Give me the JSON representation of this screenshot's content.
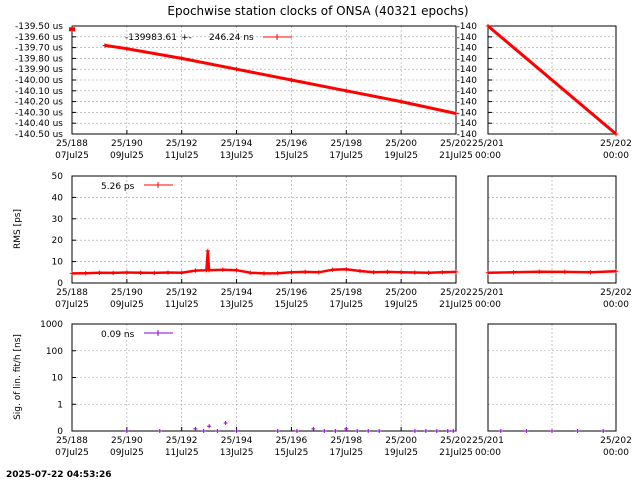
{
  "title": "Epochwise station clocks of ONSA (40321 epochs)",
  "footer": {
    "timestamp": "2025-07-22 04:53:26"
  },
  "colors": {
    "clock": "#ff0000",
    "rms": "#ff0000",
    "sig": "#9400d3",
    "grid": "#a0a0a0"
  },
  "chart_data": [
    {
      "id": "clock",
      "type": "scatter",
      "ylabel": "",
      "legend": {
        "value": "-139983.61",
        "pm": "+-",
        "sigma": "246.24 ns",
        "placement": "top-left"
      },
      "x_ticks_main": [
        {
          "line1": "25/188",
          "line2": "07Jul25"
        },
        {
          "line1": "25/190",
          "line2": "09Jul25"
        },
        {
          "line1": "25/192",
          "line2": "11Jul25"
        },
        {
          "line1": "25/194",
          "line2": "13Jul25"
        },
        {
          "line1": "25/196",
          "line2": "15Jul25"
        },
        {
          "line1": "25/198",
          "line2": "17Jul25"
        },
        {
          "line1": "25/200",
          "line2": "19Jul25"
        },
        {
          "line1": "25/202",
          "line2": "21Jul25"
        }
      ],
      "x_ticks_zoom": [
        {
          "line1": "25/201",
          "line2": "00:00"
        },
        {
          "line1": "25/202",
          "line2": "00:00"
        }
      ],
      "y_ticks_main": [
        "-139.50 us",
        "-139.60 us",
        "-139.70 us",
        "-139.80 us",
        "-139.90 us",
        "-140.00 us",
        "-140.10 us",
        "-140.20 us",
        "-140.30 us",
        "-140.40 us",
        "-140.50 us"
      ],
      "y_ticks_zoom": [
        "-140",
        "-140",
        "-140",
        "-140",
        "-140",
        "-140",
        "-140",
        "-140",
        "-140",
        "-140",
        "-140"
      ],
      "ylim": [
        -140.5,
        -139.5
      ],
      "xlim_main": [
        188,
        202
      ],
      "xlim_zoom": [
        201,
        202
      ],
      "series_main": {
        "x": [
          188.0,
          189.2,
          190.0,
          192.0,
          194.0,
          196.0,
          198.0,
          200.0,
          202.0
        ],
        "y": [
          -139.53,
          -139.68,
          -139.71,
          -139.8,
          -139.9,
          -140.0,
          -140.1,
          -140.2,
          -140.31
        ]
      },
      "series_zoom": {
        "x": [
          201.0,
          202.0
        ],
        "y": [
          -139.5,
          -140.5
        ]
      }
    },
    {
      "id": "rms",
      "type": "line",
      "ylabel": "RMS [ps]",
      "legend": {
        "value": "5.26 ps",
        "placement": "top-left"
      },
      "x_ticks_main": [
        {
          "line1": "25/188",
          "line2": "07Jul25"
        },
        {
          "line1": "25/190",
          "line2": "09Jul25"
        },
        {
          "line1": "25/192",
          "line2": "11Jul25"
        },
        {
          "line1": "25/194",
          "line2": "13Jul25"
        },
        {
          "line1": "25/196",
          "line2": "15Jul25"
        },
        {
          "line1": "25/198",
          "line2": "17Jul25"
        },
        {
          "line1": "25/200",
          "line2": "19Jul25"
        },
        {
          "line1": "25/202",
          "line2": "21Jul25"
        }
      ],
      "x_ticks_zoom": [
        {
          "line1": "25/201",
          "line2": "00:00"
        },
        {
          "line1": "25/202",
          "line2": "00:00"
        }
      ],
      "y_ticks": [
        "0",
        "10",
        "20",
        "30",
        "40",
        "50"
      ],
      "ylim": [
        0,
        50
      ],
      "xlim_main": [
        188,
        202
      ],
      "xlim_zoom": [
        201,
        202
      ],
      "series_main": {
        "x": [
          188.0,
          188.5,
          189.0,
          189.5,
          190.0,
          190.5,
          191.0,
          191.5,
          192.0,
          192.5,
          192.9,
          192.95,
          193.0,
          193.5,
          194.0,
          194.5,
          195.0,
          195.5,
          196.0,
          196.5,
          197.0,
          197.5,
          198.0,
          198.5,
          199.0,
          199.5,
          200.0,
          200.5,
          201.0,
          201.5,
          202.0
        ],
        "y": [
          4.5,
          4.6,
          4.8,
          4.7,
          4.9,
          4.8,
          4.7,
          4.9,
          4.8,
          5.8,
          6.0,
          15.0,
          6.0,
          6.2,
          6.0,
          4.8,
          4.5,
          4.6,
          5.0,
          5.2,
          5.0,
          6.2,
          6.4,
          5.6,
          5.0,
          5.2,
          5.0,
          4.9,
          4.8,
          5.0,
          5.2
        ]
      },
      "series_zoom": {
        "x": [
          201.0,
          201.2,
          201.4,
          201.6,
          201.8,
          202.0
        ],
        "y": [
          4.8,
          5.0,
          5.3,
          5.2,
          5.0,
          5.5
        ]
      }
    },
    {
      "id": "sig",
      "type": "scatter",
      "ylabel": "Sig. of lin. fit/h [ns]",
      "legend": {
        "value": "0.09 ns",
        "placement": "top-left"
      },
      "x_ticks_main": [
        {
          "line1": "25/188",
          "line2": "07Jul25"
        },
        {
          "line1": "25/190",
          "line2": "09Jul25"
        },
        {
          "line1": "25/192",
          "line2": "11Jul25"
        },
        {
          "line1": "25/194",
          "line2": "13Jul25"
        },
        {
          "line1": "25/196",
          "line2": "15Jul25"
        },
        {
          "line1": "25/198",
          "line2": "17Jul25"
        },
        {
          "line1": "25/200",
          "line2": "19Jul25"
        },
        {
          "line1": "25/202",
          "line2": "21Jul25"
        }
      ],
      "x_ticks_zoom": [
        {
          "line1": "25/201",
          "line2": "00:00"
        },
        {
          "line1": "25/202",
          "line2": "00:00"
        }
      ],
      "y_ticks": [
        "0",
        "1",
        "10",
        "100",
        "1000"
      ],
      "scale": "log",
      "xlim_main": [
        188,
        202
      ],
      "xlim_zoom": [
        201,
        202
      ],
      "series_main": {
        "x": [
          190.0,
          191.2,
          192.5,
          192.8,
          193.0,
          193.3,
          193.6,
          194.0,
          195.5,
          196.2,
          196.8,
          197.2,
          197.6,
          198.0,
          198.4,
          198.8,
          199.2,
          200.5,
          200.9,
          201.3,
          201.7,
          201.9
        ],
        "y": [
          0.02,
          0.03,
          0.12,
          0.1,
          0.15,
          0.08,
          0.2,
          0.1,
          0.06,
          0.1,
          0.12,
          0.08,
          0.1,
          0.12,
          0.09,
          0.08,
          0.06,
          0.05,
          0.07,
          0.06,
          0.08,
          0.05
        ]
      },
      "series_zoom": {
        "x": [
          201.1,
          201.3,
          201.5,
          201.7,
          201.9
        ],
        "y": [
          0.03,
          0.05,
          0.04,
          0.04,
          0.06
        ]
      }
    }
  ]
}
